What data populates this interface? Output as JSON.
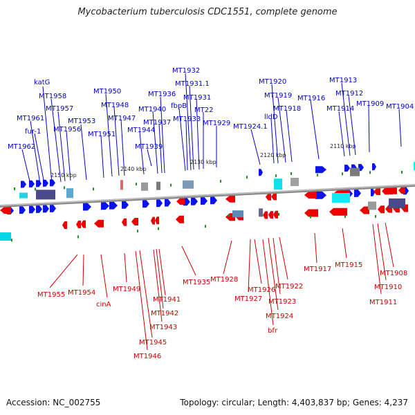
{
  "title": "Mycobacterium tuberculosis CDC1551, complete genome",
  "footer": {
    "accession": "Accession: NC_002755",
    "summary": "Topology: circular; Length: 4,403,837 bp; Genes: 4,237"
  },
  "ticks": [
    "2150 kbp",
    "2140 kbp",
    "2130 kbp",
    "2120 kbp",
    "2110 kbp"
  ],
  "genes_top": [
    "katG",
    "MT1958",
    "MT1957",
    "MT1961",
    "fur-1",
    "MT1956",
    "MT1962",
    "MT1953",
    "MT1951",
    "MT1950",
    "MT1948",
    "MT1947",
    "MT1944",
    "MT1940",
    "MT1936",
    "MT1937",
    "fbpB",
    "MT1932",
    "MT1931.1",
    "MT1931",
    "MT1933",
    "MT22",
    "MT1929",
    "MT1924.1",
    "MT1920",
    "MT1919",
    "lldD",
    "MT1918",
    "MT1916",
    "MT1913",
    "MT1912",
    "MT1914",
    "MT1909",
    "MT1904",
    "MT1939"
  ],
  "genes_bottom": [
    "MT1955",
    "MT1954",
    "cinA",
    "MT1949",
    "MT1941",
    "MT1942",
    "MT1943",
    "MT1945",
    "MT1946",
    "MT1935",
    "MT1928",
    "MT1927",
    "MT1926",
    "MT1922",
    "MT1923",
    "MT1924",
    "bfr",
    "MT1917",
    "MT1915",
    "MT1908",
    "MT1910",
    "MT1911"
  ]
}
